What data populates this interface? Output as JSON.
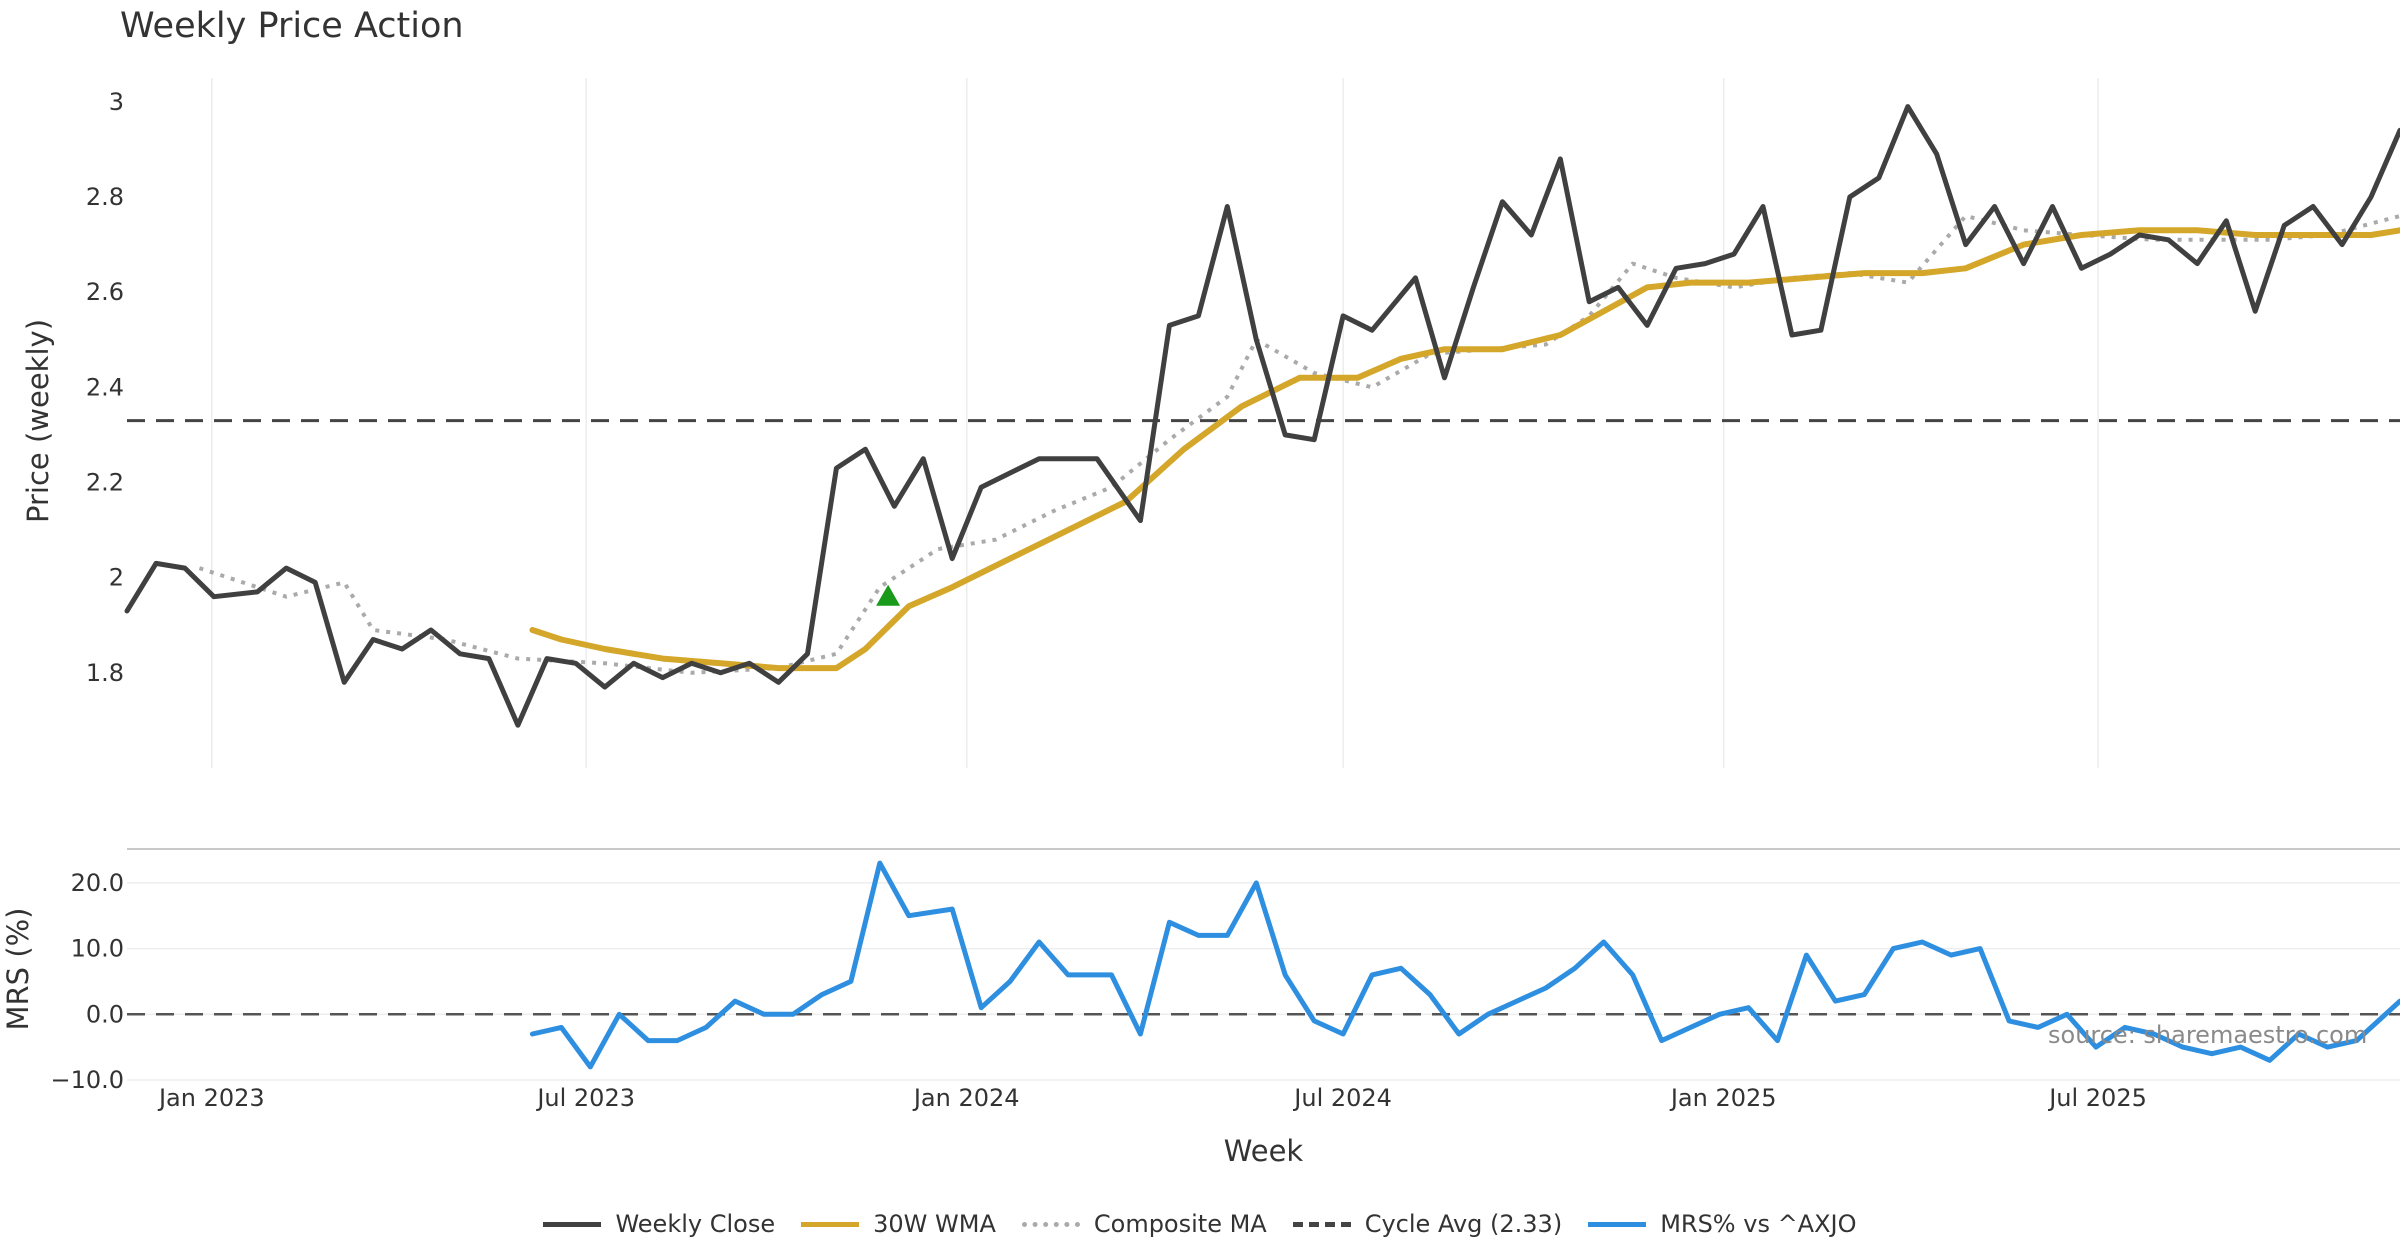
{
  "chart_data": {
    "type": "line",
    "title": "Weekly Price Action",
    "source_note": "source: sharemaestro.com",
    "x_axis": {
      "label": "Week",
      "range": [
        "2022-11-21",
        "2025-11-24"
      ],
      "ticks": [
        "Jan 2023",
        "Jul 2023",
        "Jan 2024",
        "Jul 2024",
        "Jan 2025",
        "Jul 2025"
      ],
      "tick_dates": [
        "2023-01-01",
        "2023-07-01",
        "2024-01-01",
        "2024-07-01",
        "2025-01-01",
        "2025-07-01"
      ]
    },
    "price_panel": {
      "ylabel": "Price (weekly)",
      "ylim": [
        1.6,
        3.05
      ],
      "yticks": [
        1.8,
        2,
        2.2,
        2.4,
        2.6,
        2.8,
        3
      ],
      "ytick_labels": [
        "1.8",
        "2",
        "2.2",
        "2.4",
        "2.6",
        "2.8",
        "3"
      ],
      "grid": "vertical",
      "cycle_avg": 2.33,
      "buy_marker": {
        "date": "2023-11-24",
        "value": 1.96,
        "color": "#1a9a1a"
      },
      "series": [
        {
          "name": "Weekly Close",
          "color": "#404040",
          "style": "solid",
          "dates": [
            "2022-11-21",
            "2022-12-05",
            "2022-12-19",
            "2023-01-02",
            "2023-01-23",
            "2023-02-06",
            "2023-02-20",
            "2023-03-06",
            "2023-03-20",
            "2023-04-03",
            "2023-04-17",
            "2023-05-01",
            "2023-05-15",
            "2023-05-29",
            "2023-06-12",
            "2023-06-26",
            "2023-07-10",
            "2023-07-24",
            "2023-08-07",
            "2023-08-21",
            "2023-09-04",
            "2023-09-18",
            "2023-10-02",
            "2023-10-16",
            "2023-10-30",
            "2023-11-13",
            "2023-11-27",
            "2023-12-11",
            "2023-12-25",
            "2024-01-08",
            "2024-02-05",
            "2024-03-04",
            "2024-03-25",
            "2024-04-08",
            "2024-04-22",
            "2024-05-06",
            "2024-05-20",
            "2024-06-03",
            "2024-06-17",
            "2024-07-01",
            "2024-07-15",
            "2024-08-05",
            "2024-08-19",
            "2024-09-02",
            "2024-09-16",
            "2024-09-30",
            "2024-10-14",
            "2024-10-28",
            "2024-11-11",
            "2024-11-25",
            "2024-12-09",
            "2024-12-23",
            "2025-01-06",
            "2025-01-20",
            "2025-02-03",
            "2025-02-17",
            "2025-03-03",
            "2025-03-17",
            "2025-03-31",
            "2025-04-14",
            "2025-04-28",
            "2025-05-12",
            "2025-05-26",
            "2025-06-09",
            "2025-06-23",
            "2025-07-07",
            "2025-07-21",
            "2025-08-04",
            "2025-08-18",
            "2025-09-01",
            "2025-09-15",
            "2025-09-29",
            "2025-10-13",
            "2025-10-27",
            "2025-11-10",
            "2025-11-24"
          ],
          "values": [
            1.93,
            2.03,
            2.02,
            1.96,
            1.97,
            2.02,
            1.99,
            1.78,
            1.87,
            1.85,
            1.89,
            1.84,
            1.83,
            1.69,
            1.83,
            1.82,
            1.77,
            1.82,
            1.79,
            1.82,
            1.8,
            1.82,
            1.78,
            1.84,
            2.23,
            2.27,
            2.15,
            2.25,
            2.04,
            2.19,
            2.25,
            2.25,
            2.12,
            2.53,
            2.55,
            2.78,
            2.5,
            2.3,
            2.29,
            2.55,
            2.52,
            2.63,
            2.42,
            2.61,
            2.79,
            2.72,
            2.88,
            2.58,
            2.61,
            2.53,
            2.65,
            2.66,
            2.68,
            2.78,
            2.51,
            2.52,
            2.8,
            2.84,
            2.99,
            2.89,
            2.7,
            2.78,
            2.66,
            2.78,
            2.65,
            2.68,
            2.72,
            2.71,
            2.66,
            2.75,
            2.56,
            2.74,
            2.78,
            2.7,
            2.8,
            2.94
          ]
        },
        {
          "name": "30W WMA",
          "color": "#d4a62a",
          "style": "solid",
          "dates": [
            "2023-06-05",
            "2023-06-19",
            "2023-07-10",
            "2023-08-07",
            "2023-09-04",
            "2023-10-02",
            "2023-10-30",
            "2023-11-13",
            "2023-12-04",
            "2023-12-25",
            "2024-01-22",
            "2024-02-19",
            "2024-03-18",
            "2024-04-15",
            "2024-05-13",
            "2024-06-10",
            "2024-06-24",
            "2024-07-08",
            "2024-07-29",
            "2024-08-19",
            "2024-09-16",
            "2024-10-14",
            "2024-11-04",
            "2024-11-25",
            "2024-12-16",
            "2025-01-13",
            "2025-02-10",
            "2025-03-10",
            "2025-04-07",
            "2025-04-28",
            "2025-05-26",
            "2025-06-23",
            "2025-07-21",
            "2025-08-18",
            "2025-09-15",
            "2025-10-13",
            "2025-11-10",
            "2025-11-24"
          ],
          "values": [
            1.89,
            1.87,
            1.85,
            1.83,
            1.82,
            1.81,
            1.81,
            1.85,
            1.94,
            1.98,
            2.04,
            2.1,
            2.16,
            2.27,
            2.36,
            2.42,
            2.42,
            2.42,
            2.46,
            2.48,
            2.48,
            2.51,
            2.56,
            2.61,
            2.62,
            2.62,
            2.63,
            2.64,
            2.64,
            2.65,
            2.7,
            2.72,
            2.73,
            2.73,
            2.72,
            2.72,
            2.72,
            2.73
          ]
        },
        {
          "name": "Composite MA",
          "color": "#aaaaaa",
          "style": "dotted",
          "dates": [
            "2022-12-26",
            "2023-02-06",
            "2023-03-06",
            "2023-03-20",
            "2023-04-24",
            "2023-05-29",
            "2023-07-10",
            "2023-08-21",
            "2023-10-02",
            "2023-10-30",
            "2023-11-20",
            "2023-12-18",
            "2024-01-15",
            "2024-02-12",
            "2024-03-11",
            "2024-04-08",
            "2024-05-06",
            "2024-05-20",
            "2024-06-17",
            "2024-07-15",
            "2024-08-12",
            "2024-09-09",
            "2024-10-07",
            "2024-10-28",
            "2024-11-18",
            "2024-12-09",
            "2025-01-06",
            "2025-02-03",
            "2025-03-03",
            "2025-03-31",
            "2025-04-28",
            "2025-05-26",
            "2025-06-23",
            "2025-07-28",
            "2025-08-25",
            "2025-09-22",
            "2025-10-20",
            "2025-11-24"
          ],
          "values": [
            2.02,
            1.96,
            1.99,
            1.89,
            1.87,
            1.83,
            1.82,
            1.8,
            1.81,
            1.84,
            1.98,
            2.06,
            2.08,
            2.14,
            2.19,
            2.29,
            2.38,
            2.5,
            2.43,
            2.4,
            2.47,
            2.48,
            2.49,
            2.55,
            2.66,
            2.63,
            2.61,
            2.63,
            2.64,
            2.62,
            2.76,
            2.73,
            2.72,
            2.71,
            2.71,
            2.71,
            2.72,
            2.76
          ]
        }
      ]
    },
    "mrs_panel": {
      "ylabel": "MRS (%)",
      "ylim": [
        -10,
        25
      ],
      "yticks": [
        20,
        10,
        0,
        -10
      ],
      "ytick_labels": [
        "20.0",
        "10.0",
        "0.0",
        "−10.0"
      ],
      "zero_line": 0,
      "series": [
        {
          "name": "MRS% vs ^AXJO",
          "color": "#2e8fe0",
          "style": "solid",
          "dates": [
            "2023-06-05",
            "2023-06-19",
            "2023-07-03",
            "2023-07-17",
            "2023-07-31",
            "2023-08-14",
            "2023-08-28",
            "2023-09-11",
            "2023-09-25",
            "2023-10-09",
            "2023-10-23",
            "2023-11-06",
            "2023-11-20",
            "2023-12-04",
            "2023-12-25",
            "2024-01-08",
            "2024-01-22",
            "2024-02-05",
            "2024-02-19",
            "2024-03-11",
            "2024-03-25",
            "2024-04-08",
            "2024-04-22",
            "2024-05-06",
            "2024-05-20",
            "2024-06-03",
            "2024-06-17",
            "2024-07-01",
            "2024-07-15",
            "2024-07-29",
            "2024-08-12",
            "2024-08-26",
            "2024-09-09",
            "2024-09-23",
            "2024-10-07",
            "2024-10-21",
            "2024-11-04",
            "2024-11-18",
            "2024-12-02",
            "2024-12-16",
            "2024-12-30",
            "2025-01-13",
            "2025-01-27",
            "2025-02-10",
            "2025-02-24",
            "2025-03-10",
            "2025-03-24",
            "2025-04-07",
            "2025-04-21",
            "2025-05-05",
            "2025-05-19",
            "2025-06-02",
            "2025-06-16",
            "2025-06-30",
            "2025-07-14",
            "2025-07-28",
            "2025-08-11",
            "2025-08-25",
            "2025-09-08",
            "2025-09-22",
            "2025-10-06",
            "2025-10-20",
            "2025-11-03",
            "2025-11-24"
          ],
          "values": [
            -3,
            -2,
            -8,
            0,
            -4,
            -4,
            -2,
            2,
            0,
            0,
            3,
            5,
            23,
            15,
            16,
            1,
            5,
            11,
            6,
            6,
            -3,
            14,
            12,
            12,
            20,
            6,
            -1,
            -3,
            6,
            7,
            3,
            -3,
            0,
            2,
            4,
            7,
            11,
            6,
            -4,
            -2,
            0,
            1,
            -4,
            9,
            2,
            3,
            10,
            11,
            9,
            10,
            -1,
            -2,
            0,
            -5,
            -2,
            -3,
            -5,
            -6,
            -5,
            -7,
            -3,
            -5,
            -4,
            2
          ]
        }
      ]
    },
    "legend": {
      "placement": "bottom-center",
      "items": [
        {
          "label": "Weekly Close",
          "color": "#404040",
          "style": "solid"
        },
        {
          "label": "30W WMA",
          "color": "#d4a62a",
          "style": "solid"
        },
        {
          "label": "Composite MA",
          "color": "#aaaaaa",
          "style": "dotted"
        },
        {
          "label": "Cycle Avg (2.33)",
          "color": "#444444",
          "style": "dashed"
        },
        {
          "label": "MRS% vs ^AXJO",
          "color": "#2e8fe0",
          "style": "solid"
        }
      ]
    }
  }
}
